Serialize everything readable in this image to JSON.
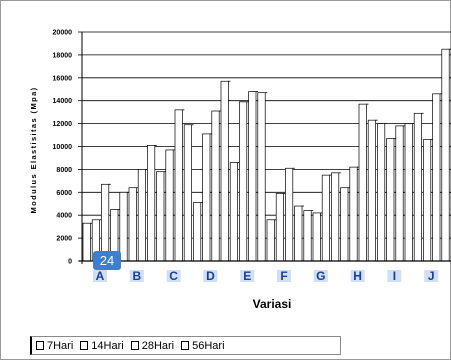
{
  "chart_data": {
    "type": "bar",
    "categories": [
      "A",
      "B",
      "C",
      "D",
      "E",
      "F",
      "G",
      "H",
      "I",
      "J"
    ],
    "category_labels": [
      "A",
      "B",
      "C",
      "D",
      "E",
      "F",
      "G",
      "H",
      "I",
      "J"
    ],
    "series": [
      {
        "name": "7Hari",
        "values": [
          3300,
          6000,
          7800,
          5100,
          8600,
          3600,
          4400,
          6400,
          12000,
          12900
        ]
      },
      {
        "name": "14Hari",
        "values": [
          3600,
          6400,
          9700,
          11100,
          13900,
          5900,
          4200,
          8200,
          10700,
          10600
        ]
      },
      {
        "name": "28Hari",
        "values": [
          6700,
          8000,
          13200,
          13100,
          14800,
          8100,
          7500,
          13700,
          11800,
          14600
        ]
      },
      {
        "name": "56Hari",
        "values": [
          4500,
          10100,
          11900,
          15700,
          14700,
          4800,
          7700,
          12300,
          12000,
          18500
        ]
      }
    ],
    "ylim": [
      0,
      20000
    ],
    "yticks": [
      "0",
      "2000",
      "4000",
      "6000",
      "8000",
      "10000",
      "12000",
      "14000",
      "16000",
      "18000",
      "20000"
    ],
    "xlabel": "Variasi",
    "ylabel": "Modulus Elastisitas (Mpa)",
    "grid": true,
    "legend_position": "bottom"
  },
  "badge": {
    "text": "24"
  },
  "legend": {
    "items": [
      {
        "label": "7Hari"
      },
      {
        "label": "14Hari"
      },
      {
        "label": "28Hari"
      },
      {
        "label": "56Hari"
      }
    ]
  },
  "colors": {
    "bar_fill": "#ffffff",
    "bar_stroke": "#000000",
    "category_label": "#1a3d9e",
    "category_highlight": "#cfe0f4",
    "badge": "#3a7fd1"
  }
}
